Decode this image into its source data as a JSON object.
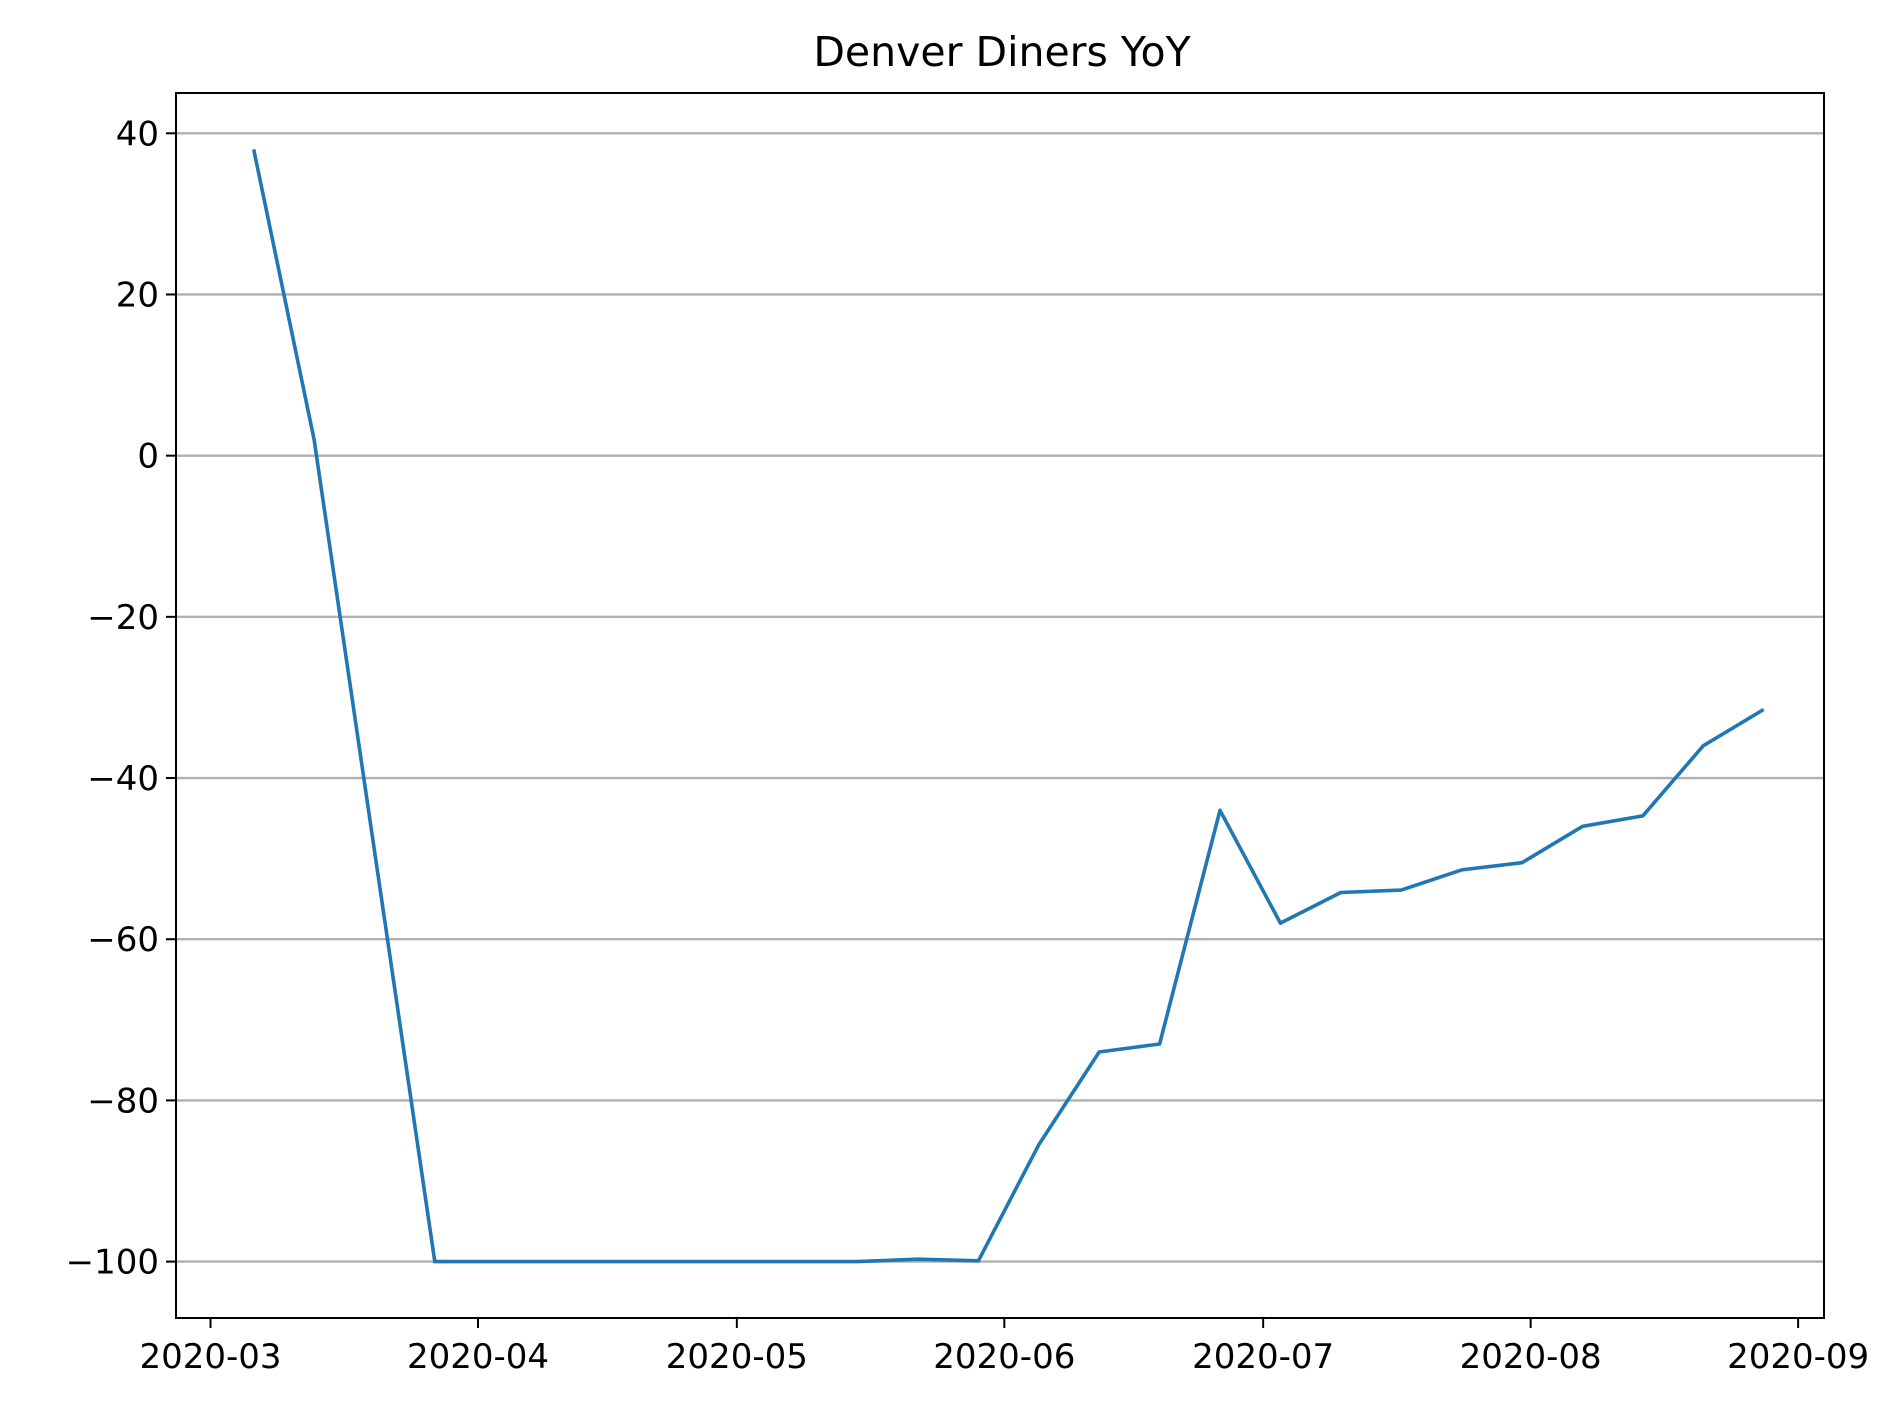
{
  "chart_data": {
    "type": "line",
    "title": "Denver Diners YoY",
    "xlabel": "",
    "ylabel": "",
    "x_type": "date",
    "xlim": [
      "2020-02-26",
      "2020-09-04"
    ],
    "ylim": [
      -107,
      45
    ],
    "grid": {
      "x": false,
      "y": true
    },
    "legend": "none",
    "colors": {
      "series": "#1f77b4",
      "grid": "#b0b0b0",
      "frame": "#000000"
    },
    "x_ticks": [
      "2020-03-01",
      "2020-04-01",
      "2020-05-01",
      "2020-06-01",
      "2020-07-01",
      "2020-08-01",
      "2020-09-01"
    ],
    "x_tick_labels": [
      "2020-03",
      "2020-04",
      "2020-05",
      "2020-06",
      "2020-07",
      "2020-08",
      "2020-09"
    ],
    "y_ticks": [
      40,
      20,
      0,
      -20,
      -40,
      -60,
      -80,
      -100
    ],
    "y_tick_labels": [
      "40",
      "20",
      "0",
      "−20",
      "−40",
      "−60",
      "−80",
      "−100"
    ],
    "series": [
      {
        "x": [
          "2020-03-06",
          "2020-03-13",
          "2020-03-27",
          "2020-04-03",
          "2020-04-10",
          "2020-04-17",
          "2020-04-24",
          "2020-05-01",
          "2020-05-08",
          "2020-05-15",
          "2020-05-22",
          "2020-05-29",
          "2020-06-05",
          "2020-06-12",
          "2020-06-19",
          "2020-06-26",
          "2020-07-03",
          "2020-07-10",
          "2020-07-17",
          "2020-07-24",
          "2020-07-31",
          "2020-08-07",
          "2020-08-14",
          "2020-08-21",
          "2020-08-28"
        ],
        "values": [
          38,
          2,
          -100,
          -100,
          -100,
          -100,
          -100,
          -100,
          -100,
          -100,
          -99.7,
          -99.9,
          -85.5,
          -74,
          -73,
          -44,
          -58,
          -54.2,
          -53.9,
          -51.4,
          -50.5,
          -46,
          -44.7,
          -36,
          -31.5
        ]
      }
    ]
  }
}
